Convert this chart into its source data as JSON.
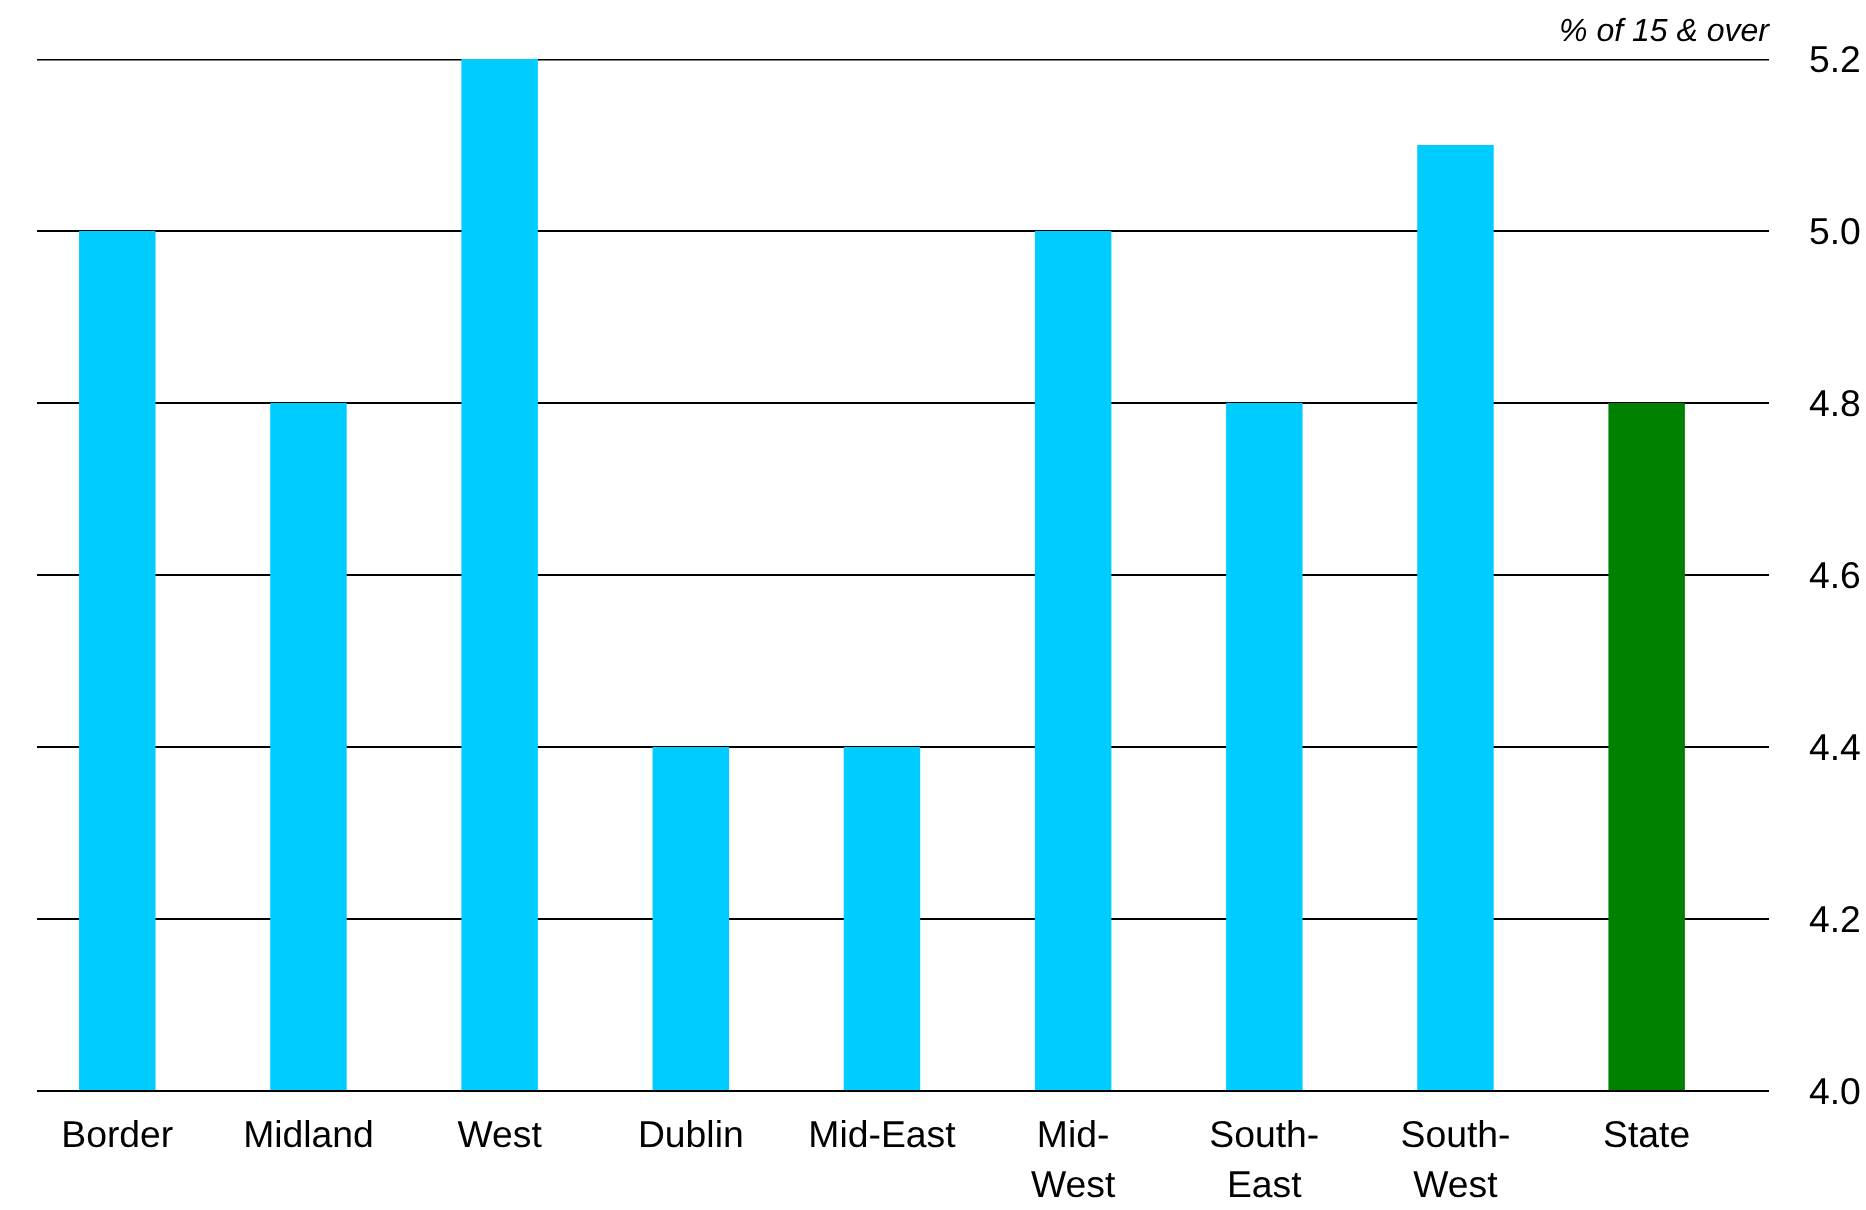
{
  "chart_data": {
    "type": "bar",
    "ylabel": "% of 15 & over",
    "categories": [
      "Border",
      "Midland",
      "West",
      "Dublin",
      "Mid-East",
      "Mid-\nWest",
      "South-\nEast",
      "South-\nWest",
      "State"
    ],
    "values": [
      5.0,
      4.8,
      5.2,
      4.4,
      4.4,
      5.0,
      4.8,
      5.1,
      4.8
    ],
    "colors": [
      "#00ccff",
      "#00ccff",
      "#00ccff",
      "#00ccff",
      "#00ccff",
      "#00ccff",
      "#00ccff",
      "#00ccff",
      "#008000"
    ],
    "ylim": [
      4.0,
      5.2
    ],
    "yticks": [
      {
        "value": 4.0,
        "label": "4.0"
      },
      {
        "value": 4.2,
        "label": "4.2"
      },
      {
        "value": 4.4,
        "label": "4.4"
      },
      {
        "value": 4.6,
        "label": "4.6"
      },
      {
        "value": 4.8,
        "label": "4.8"
      },
      {
        "value": 5.0,
        "label": "5.0"
      },
      {
        "value": 5.2,
        "label": "5.2"
      }
    ],
    "grid": "y"
  }
}
